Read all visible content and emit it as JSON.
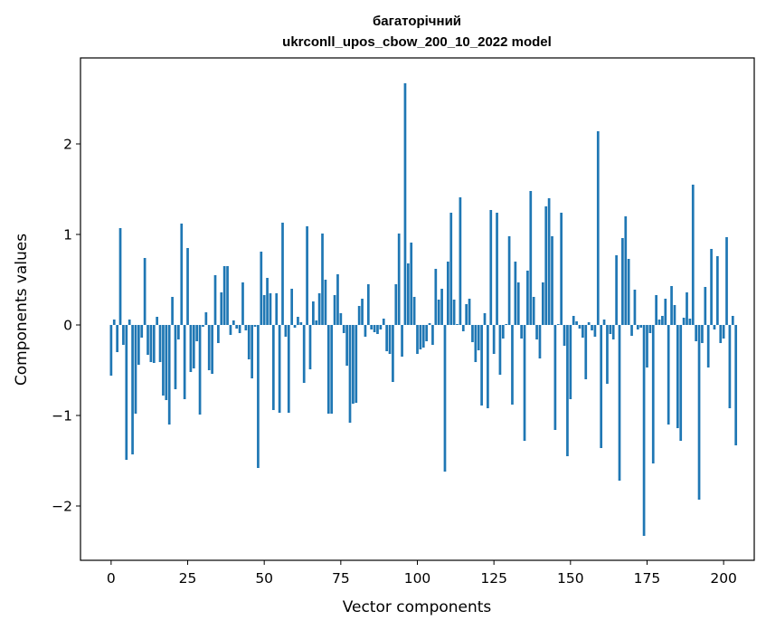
{
  "chart_data": {
    "type": "bar",
    "title_line1": "багаторічний",
    "title_line2": "ukrconll_upos_cbow_200_10_2022 model",
    "xlabel": "Vector components",
    "ylabel": "Components values",
    "xlim": [
      -10,
      210
    ],
    "ylim": [
      -2.6,
      2.95
    ],
    "xticks": [
      0,
      25,
      50,
      75,
      100,
      125,
      150,
      175,
      200
    ],
    "xtick_labels": [
      "0",
      "25",
      "50",
      "75",
      "100",
      "125",
      "150",
      "175",
      "200"
    ],
    "yticks": [
      -2,
      -1,
      0,
      1,
      2
    ],
    "ytick_labels": [
      "−2",
      "−1",
      "0",
      "1",
      "2"
    ],
    "bar_color": "#1f77b4",
    "grid": false,
    "values": [
      -0.56,
      0.06,
      -0.3,
      1.07,
      -0.22,
      -1.49,
      0.06,
      -1.43,
      -0.98,
      -0.44,
      -0.14,
      0.74,
      -0.33,
      -0.41,
      -0.42,
      0.09,
      -0.41,
      -0.78,
      -0.83,
      -1.1,
      0.31,
      -0.71,
      -0.16,
      1.12,
      -0.82,
      0.85,
      -0.52,
      -0.48,
      -0.18,
      -0.99,
      -0.02,
      0.14,
      -0.5,
      -0.54,
      0.55,
      -0.2,
      0.36,
      0.65,
      0.65,
      -0.11,
      0.05,
      -0.04,
      -0.09,
      0.47,
      -0.06,
      -0.38,
      -0.59,
      -0.02,
      -1.58,
      0.81,
      0.33,
      0.52,
      0.35,
      -0.94,
      0.35,
      -0.97,
      1.13,
      -0.13,
      -0.97,
      0.4,
      -0.03,
      0.09,
      0.03,
      -0.64,
      1.09,
      -0.49,
      0.26,
      0.05,
      0.35,
      1.01,
      0.5,
      -0.98,
      -0.98,
      0.33,
      0.56,
      0.13,
      -0.09,
      -0.45,
      -1.08,
      -0.87,
      -0.86,
      0.21,
      0.29,
      -0.13,
      0.45,
      -0.05,
      -0.08,
      -0.1,
      -0.05,
      0.07,
      -0.29,
      -0.32,
      -0.63,
      0.45,
      1.01,
      -0.35,
      2.67,
      0.68,
      0.91,
      0.31,
      -0.32,
      -0.27,
      -0.25,
      -0.18,
      0.02,
      -0.22,
      0.62,
      0.28,
      0.4,
      -1.62,
      0.7,
      1.24,
      0.28,
      0.01,
      1.41,
      -0.07,
      0.23,
      0.29,
      -0.19,
      -0.41,
      -0.28,
      -0.89,
      0.13,
      -0.92,
      1.27,
      -0.32,
      1.24,
      -0.55,
      -0.15,
      0.01,
      0.98,
      -0.88,
      0.7,
      0.47,
      -0.15,
      -1.28,
      0.6,
      1.48,
      0.31,
      -0.16,
      -0.37,
      0.47,
      1.31,
      1.4,
      0.98,
      -1.16,
      0.01,
      1.24,
      -0.23,
      -1.45,
      -0.82,
      0.1,
      0.04,
      -0.04,
      -0.14,
      -0.6,
      0.03,
      -0.06,
      -0.13,
      2.14,
      -1.36,
      0.06,
      -0.65,
      -0.1,
      -0.16,
      0.77,
      -1.72,
      0.96,
      1.2,
      0.73,
      -0.12,
      0.39,
      -0.05,
      -0.03,
      -2.33,
      -0.47,
      -0.09,
      -1.53,
      0.33,
      0.06,
      0.1,
      0.29,
      -1.1,
      0.43,
      0.22,
      -1.14,
      -1.28,
      0.08,
      0.36,
      0.07,
      1.55,
      -0.18,
      -1.93,
      -0.2,
      0.42,
      -0.47,
      0.84,
      -0.05,
      0.76,
      -0.2,
      -0.15,
      0.97,
      -0.92,
      0.1,
      -1.33
    ]
  }
}
